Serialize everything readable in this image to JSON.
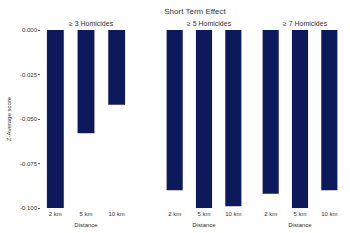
{
  "title": "Short Term Effect",
  "chart_data": [
    {
      "type": "bar",
      "title": "≥ 3 Homicides",
      "x_label": "Distance",
      "y_label": "Z-Average score",
      "categories": [
        "2 km",
        "5 km",
        "10 km"
      ],
      "values": [
        -0.1,
        -0.058,
        -0.042
      ],
      "color": "#0c1a5c",
      "ylim": [
        -0.1,
        0
      ],
      "yticks": [
        {
          "value": -0.1,
          "label": "-0.100"
        },
        {
          "value": -0.075,
          "label": "-0.075"
        },
        {
          "value": -0.05,
          "label": "-0.050"
        },
        {
          "value": -0.025,
          "label": "-0.025"
        },
        {
          "value": 0,
          "label": "0.000"
        }
      ],
      "grid": false
    },
    {
      "type": "bar",
      "title": "≥ 5 Homicides",
      "x_label": "Distance",
      "categories": [
        "2 km",
        "5 km",
        "10 km"
      ],
      "values": [
        -0.09,
        -0.1,
        -0.099
      ],
      "color": "#0c1a5c",
      "ylim": [
        -0.1,
        0
      ],
      "yticks": [
        -0.1,
        -0.075,
        -0.05,
        -0.025,
        0
      ],
      "grid": false,
      "tick_labels": "x"
    },
    {
      "type": "bar",
      "title": "≥ 7 Homicides",
      "x_label": "Distance",
      "categories": [
        "2 km",
        "5 km",
        "10 km"
      ],
      "values": [
        -0.092,
        -0.1,
        -0.09
      ],
      "color": "#0c1a5c",
      "ylim": [
        -0.1,
        0
      ],
      "yticks": [
        -0.1,
        -0.075,
        -0.05,
        -0.025,
        0
      ],
      "grid": false,
      "tick_labels": "x"
    }
  ]
}
